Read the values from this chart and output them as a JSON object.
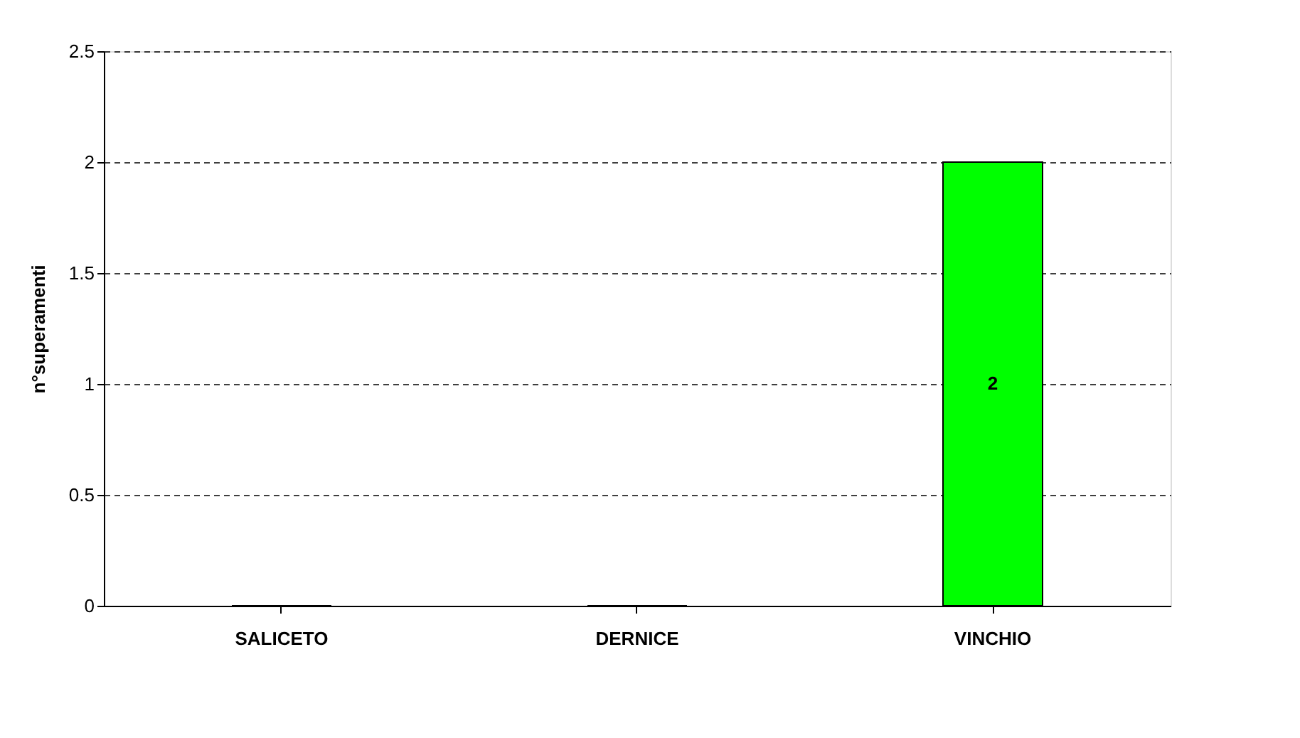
{
  "chart_data": {
    "type": "bar",
    "ylabel": "n°superamenti",
    "categories": [
      "SALICETO",
      "DERNICE",
      "VINCHIO"
    ],
    "values": [
      0,
      0,
      2
    ],
    "value_labels": [
      null,
      null,
      "2"
    ],
    "color": "#00ff00",
    "ylim": [
      0,
      2.5
    ],
    "yticks": [
      0,
      0.5,
      1,
      1.5,
      2,
      2.5
    ],
    "grid": "y"
  }
}
